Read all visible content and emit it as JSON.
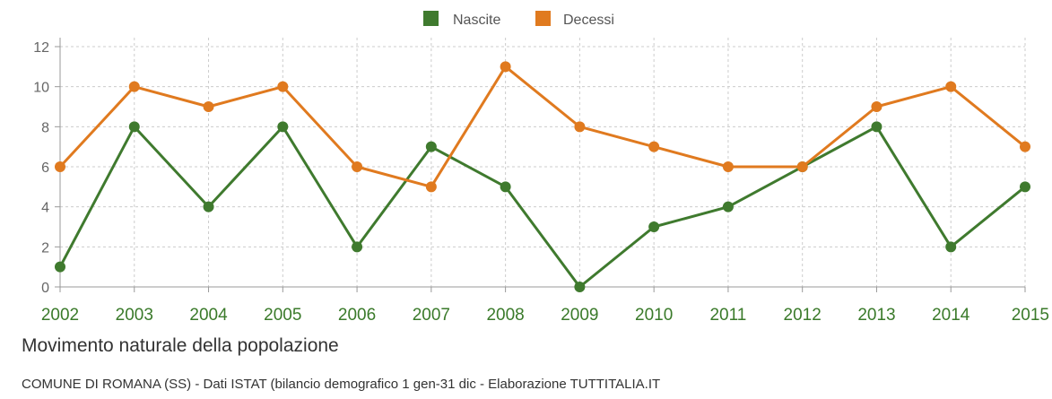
{
  "chart_data": {
    "type": "line",
    "title": "Movimento naturale della popolazione",
    "source": "COMUNE DI ROMANA (SS) - Dati ISTAT (bilancio demografico 1 gen-31 dic - Elaborazione TUTTITALIA.IT",
    "categories": [
      "2002",
      "2003",
      "2004",
      "2005",
      "2006",
      "2007",
      "2008",
      "2009",
      "2010",
      "2011",
      "2012",
      "2013",
      "2014",
      "2015"
    ],
    "series": [
      {
        "name": "Nascite",
        "color": "#3f7a2e",
        "values": [
          1,
          8,
          4,
          8,
          2,
          7,
          5,
          0,
          3,
          4,
          6,
          8,
          2,
          5
        ]
      },
      {
        "name": "Decessi",
        "color": "#e07a1f",
        "values": [
          6,
          10,
          9,
          10,
          6,
          5,
          11,
          8,
          7,
          6,
          6,
          9,
          10,
          7
        ]
      }
    ],
    "yticks": [
      "0",
      "2",
      "4",
      "6",
      "8",
      "10",
      "12"
    ],
    "ylim": [
      0,
      12
    ],
    "grid": true,
    "legend_position": "top-center"
  }
}
